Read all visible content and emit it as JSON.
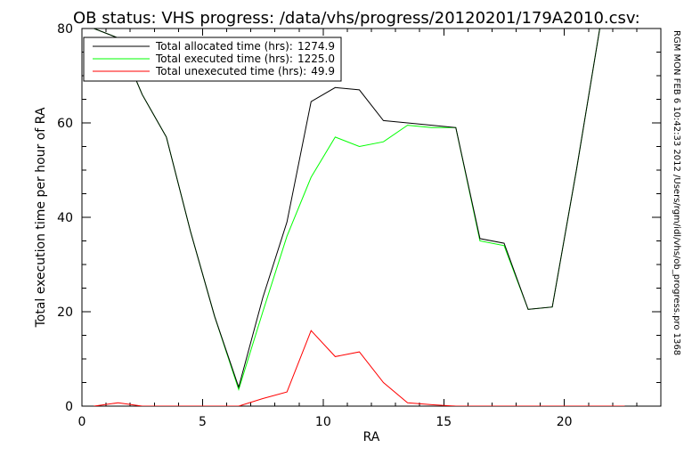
{
  "chart_data": {
    "type": "line",
    "title": "OB status: VHS progress: /data/vhs/progress/20120201/179A2010.csv:",
    "xlabel": "RA",
    "ylabel": "Total execution time per hour of RA",
    "side_note": "RGM MON FEB  6 10:42:33 2012 /Users/rgm/idl/vhs/ob_progress.pro 1368",
    "xlim": [
      0,
      24
    ],
    "ylim": [
      0,
      80
    ],
    "x_ticks": [
      0,
      5,
      10,
      15,
      20
    ],
    "y_ticks": [
      0,
      20,
      40,
      60,
      80
    ],
    "grid": false,
    "legend_position": "top-left",
    "series": [
      {
        "name": "Total allocated time (hrs):",
        "legend_value": "1274.9",
        "color": "#000000",
        "x": [
          0.5,
          1.5,
          2.5,
          3.5,
          4.5,
          5.5,
          6.5,
          7.5,
          8.5,
          9.5,
          10.5,
          11.5,
          12.5,
          13.5,
          14.5,
          15.5,
          16.5,
          17.5,
          18.5,
          19.5,
          20.5,
          21.5,
          22.5
        ],
        "values": [
          80,
          78,
          66,
          57,
          37,
          19,
          4,
          23,
          39,
          64.5,
          67.5,
          67,
          60.5,
          60,
          59.5,
          59,
          35.5,
          34.5,
          20.5,
          21,
          50,
          81,
          80
        ]
      },
      {
        "name": "Total executed time (hrs):",
        "legend_value": "1225.0",
        "color": "#00ff00",
        "x": [
          0.5,
          1.5,
          2.5,
          3.5,
          4.5,
          5.5,
          6.5,
          7.5,
          8.5,
          9.5,
          10.5,
          11.5,
          12.5,
          13.5,
          14.5,
          15.5,
          16.5,
          17.5,
          18.5,
          19.5,
          20.5,
          21.5,
          22.5
        ],
        "values": [
          80,
          78,
          66,
          57,
          37,
          19,
          3.5,
          20,
          36,
          48.5,
          57,
          55,
          56,
          59.5,
          59,
          59,
          35,
          34,
          20.5,
          21,
          50,
          81,
          80
        ]
      },
      {
        "name": "Total unexecuted time (hrs):",
        "legend_value": "49.9",
        "color": "#ff0000",
        "x": [
          0.5,
          1.5,
          2.5,
          3.5,
          4.5,
          5.5,
          6.5,
          7.5,
          8.5,
          9.5,
          10.5,
          11.5,
          12.5,
          13.5,
          14.5,
          15.5,
          16.5,
          17.5,
          18.5,
          19.5,
          20.5,
          21.5,
          22.5
        ],
        "values": [
          0,
          0.7,
          0,
          0,
          0,
          0,
          0,
          1.6,
          3,
          16,
          10.5,
          11.5,
          5,
          0.7,
          0.3,
          0,
          0,
          0,
          0,
          0,
          0,
          0,
          0
        ]
      }
    ]
  }
}
